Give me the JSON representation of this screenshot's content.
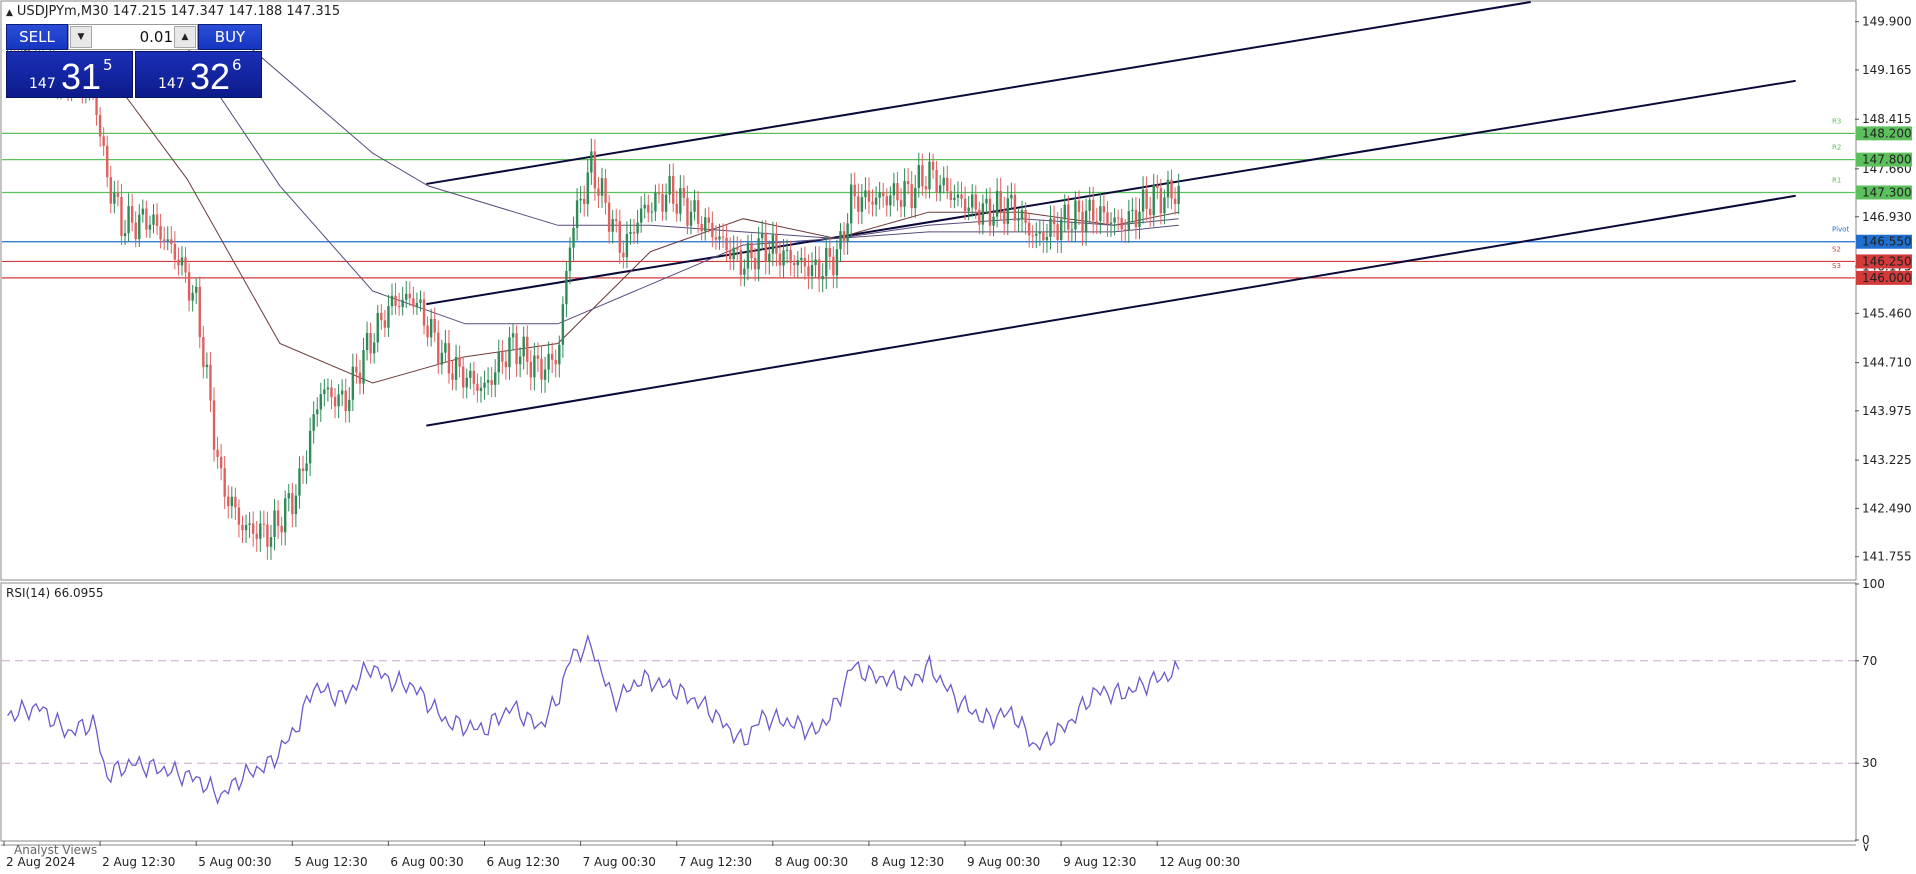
{
  "header": {
    "symbol_line": "USDJPYm,M30  147.215 147.347 147.188 147.315"
  },
  "trade_panel": {
    "sell_label": "SELL",
    "buy_label": "BUY",
    "quantity": "0.01",
    "sell_price_prefix": "147",
    "sell_price_main": "31",
    "sell_price_sup": "5",
    "buy_price_prefix": "147",
    "buy_price_main": "32",
    "buy_price_sup": "6"
  },
  "colors": {
    "bull": "#2e8b57",
    "bear": "#e06060",
    "resistance": "#5cc05c",
    "pivot": "#1e6fd0",
    "support": "#d33a3a",
    "channel": "#0a0a3a",
    "ma_fast": "#6b3a3a",
    "ma_slow": "#5a4a7a",
    "rsi_line": "#6a5acd"
  },
  "bottom": {
    "analyst_views": "Analyst Views"
  },
  "chart_data": [
    {
      "type": "candlestick",
      "title": "USDJPYm,M30",
      "ylim": [
        141.4,
        150.2
      ],
      "y_ticks": [
        "149.900",
        "149.165",
        "148.415",
        "147.660",
        "146.930",
        "146.175",
        "145.460",
        "144.710",
        "143.975",
        "143.225",
        "142.490",
        "141.755"
      ],
      "x_ticks": [
        "2 Aug 2024",
        "2 Aug 12:30",
        "5 Aug 00:30",
        "5 Aug 12:30",
        "6 Aug 00:30",
        "6 Aug 12:30",
        "7 Aug 00:30",
        "7 Aug 12:30",
        "8 Aug 00:30",
        "8 Aug 12:30",
        "9 Aug 00:30",
        "9 Aug 12:30",
        "12 Aug 00:30"
      ],
      "levels": [
        {
          "name": "R3",
          "value": 148.2,
          "label": "148.200",
          "kind": "resistance"
        },
        {
          "name": "R2",
          "value": 147.8,
          "label": "147.800",
          "kind": "resistance"
        },
        {
          "name": "R1",
          "value": 147.3,
          "label": "147.300",
          "kind": "resistance"
        },
        {
          "name": "Pivot",
          "value": 146.55,
          "label": "146.550",
          "kind": "pivot"
        },
        {
          "name": "S2",
          "value": 146.25,
          "label": "146.250",
          "kind": "support"
        },
        {
          "name": "S3",
          "value": 146.0,
          "label": "146.000",
          "kind": "support"
        }
      ],
      "trendlines": [
        {
          "name": "upper",
          "from": {
            "t": 0.229,
            "price": 147.43
          },
          "to": {
            "t": 0.825,
            "price": 150.2
          }
        },
        {
          "name": "middle",
          "from": {
            "t": 0.229,
            "price": 145.6
          },
          "to": {
            "t": 0.968,
            "price": 149.0
          }
        },
        {
          "name": "lower",
          "from": {
            "t": 0.229,
            "price": 143.75
          },
          "to": {
            "t": 0.968,
            "price": 147.25
          }
        }
      ],
      "close_anchors": [
        {
          "t": 0.0,
          "price": 149.4
        },
        {
          "t": 0.033,
          "price": 149.1
        },
        {
          "t": 0.05,
          "price": 148.8
        },
        {
          "t": 0.056,
          "price": 147.6
        },
        {
          "t": 0.065,
          "price": 146.8
        },
        {
          "t": 0.08,
          "price": 146.9
        },
        {
          "t": 0.095,
          "price": 146.3
        },
        {
          "t": 0.105,
          "price": 145.6
        },
        {
          "t": 0.118,
          "price": 142.9
        },
        {
          "t": 0.13,
          "price": 142.2
        },
        {
          "t": 0.145,
          "price": 142.1
        },
        {
          "t": 0.16,
          "price": 142.8
        },
        {
          "t": 0.172,
          "price": 144.3
        },
        {
          "t": 0.185,
          "price": 144.1
        },
        {
          "t": 0.198,
          "price": 145.0
        },
        {
          "t": 0.21,
          "price": 145.6
        },
        {
          "t": 0.222,
          "price": 145.7
        },
        {
          "t": 0.24,
          "price": 144.7
        },
        {
          "t": 0.26,
          "price": 144.3
        },
        {
          "t": 0.275,
          "price": 145.0
        },
        {
          "t": 0.29,
          "price": 144.6
        },
        {
          "t": 0.3,
          "price": 144.8
        },
        {
          "t": 0.307,
          "price": 146.7
        },
        {
          "t": 0.318,
          "price": 147.7
        },
        {
          "t": 0.335,
          "price": 146.4
        },
        {
          "t": 0.345,
          "price": 147.0
        },
        {
          "t": 0.36,
          "price": 147.3
        },
        {
          "t": 0.38,
          "price": 146.8
        },
        {
          "t": 0.4,
          "price": 146.2
        },
        {
          "t": 0.41,
          "price": 146.5
        },
        {
          "t": 0.425,
          "price": 146.3
        },
        {
          "t": 0.44,
          "price": 146.1
        },
        {
          "t": 0.452,
          "price": 146.4
        },
        {
          "t": 0.458,
          "price": 147.2
        },
        {
          "t": 0.47,
          "price": 147.2
        },
        {
          "t": 0.49,
          "price": 147.3
        },
        {
          "t": 0.5,
          "price": 147.6
        },
        {
          "t": 0.515,
          "price": 147.2
        },
        {
          "t": 0.53,
          "price": 147.0
        },
        {
          "t": 0.545,
          "price": 147.1
        },
        {
          "t": 0.558,
          "price": 146.6
        },
        {
          "t": 0.575,
          "price": 146.9
        },
        {
          "t": 0.59,
          "price": 147.0
        },
        {
          "t": 0.605,
          "price": 146.8
        },
        {
          "t": 0.62,
          "price": 147.2
        },
        {
          "t": 0.635,
          "price": 147.3
        }
      ],
      "moving_averages": [
        {
          "name": "MA fast",
          "points": [
            {
              "t": 0.05,
              "price": 149.4
            },
            {
              "t": 0.1,
              "price": 147.5
            },
            {
              "t": 0.15,
              "price": 145.0
            },
            {
              "t": 0.2,
              "price": 144.4
            },
            {
              "t": 0.25,
              "price": 144.8
            },
            {
              "t": 0.3,
              "price": 145.0
            },
            {
              "t": 0.35,
              "price": 146.4
            },
            {
              "t": 0.4,
              "price": 146.9
            },
            {
              "t": 0.45,
              "price": 146.6
            },
            {
              "t": 0.5,
              "price": 147.0
            },
            {
              "t": 0.55,
              "price": 147.0
            },
            {
              "t": 0.6,
              "price": 146.8
            },
            {
              "t": 0.635,
              "price": 147.0
            }
          ]
        },
        {
          "name": "MA slow",
          "points": [
            {
              "t": 0.1,
              "price": 149.5
            },
            {
              "t": 0.15,
              "price": 147.4
            },
            {
              "t": 0.2,
              "price": 145.8
            },
            {
              "t": 0.25,
              "price": 145.3
            },
            {
              "t": 0.3,
              "price": 145.3
            },
            {
              "t": 0.35,
              "price": 145.9
            },
            {
              "t": 0.4,
              "price": 146.5
            },
            {
              "t": 0.45,
              "price": 146.6
            },
            {
              "t": 0.5,
              "price": 146.8
            },
            {
              "t": 0.55,
              "price": 146.9
            },
            {
              "t": 0.6,
              "price": 146.8
            },
            {
              "t": 0.635,
              "price": 146.9
            }
          ]
        },
        {
          "name": "MA long",
          "points": [
            {
              "t": 0.13,
              "price": 149.6
            },
            {
              "t": 0.2,
              "price": 147.9
            },
            {
              "t": 0.23,
              "price": 147.4
            },
            {
              "t": 0.3,
              "price": 146.8
            },
            {
              "t": 0.35,
              "price": 146.8
            },
            {
              "t": 0.4,
              "price": 146.7
            },
            {
              "t": 0.45,
              "price": 146.6
            },
            {
              "t": 0.5,
              "price": 146.7
            },
            {
              "t": 0.55,
              "price": 146.7
            },
            {
              "t": 0.6,
              "price": 146.7
            },
            {
              "t": 0.635,
              "price": 146.8
            }
          ]
        }
      ]
    },
    {
      "type": "line",
      "title": "RSI(14) 66.0955",
      "ylim": [
        0,
        100
      ],
      "y_ticks": [
        "100",
        "70",
        "30",
        "0"
      ],
      "levels": [
        70,
        30
      ],
      "anchors": [
        {
          "t": 0.0,
          "price": 48
        },
        {
          "t": 0.02,
          "price": 52
        },
        {
          "t": 0.035,
          "price": 42
        },
        {
          "t": 0.05,
          "price": 46
        },
        {
          "t": 0.056,
          "price": 25
        },
        {
          "t": 0.07,
          "price": 30
        },
        {
          "t": 0.09,
          "price": 27
        },
        {
          "t": 0.105,
          "price": 24
        },
        {
          "t": 0.118,
          "price": 17
        },
        {
          "t": 0.13,
          "price": 25
        },
        {
          "t": 0.145,
          "price": 30
        },
        {
          "t": 0.16,
          "price": 45
        },
        {
          "t": 0.168,
          "price": 60
        },
        {
          "t": 0.185,
          "price": 55
        },
        {
          "t": 0.198,
          "price": 68
        },
        {
          "t": 0.21,
          "price": 62
        },
        {
          "t": 0.222,
          "price": 60
        },
        {
          "t": 0.24,
          "price": 46
        },
        {
          "t": 0.26,
          "price": 43
        },
        {
          "t": 0.275,
          "price": 52
        },
        {
          "t": 0.29,
          "price": 44
        },
        {
          "t": 0.3,
          "price": 55
        },
        {
          "t": 0.307,
          "price": 72
        },
        {
          "t": 0.318,
          "price": 76
        },
        {
          "t": 0.33,
          "price": 54
        },
        {
          "t": 0.345,
          "price": 63
        },
        {
          "t": 0.36,
          "price": 60
        },
        {
          "t": 0.38,
          "price": 52
        },
        {
          "t": 0.4,
          "price": 38
        },
        {
          "t": 0.41,
          "price": 48
        },
        {
          "t": 0.425,
          "price": 46
        },
        {
          "t": 0.44,
          "price": 42
        },
        {
          "t": 0.452,
          "price": 55
        },
        {
          "t": 0.458,
          "price": 68
        },
        {
          "t": 0.47,
          "price": 64
        },
        {
          "t": 0.49,
          "price": 61
        },
        {
          "t": 0.5,
          "price": 68
        },
        {
          "t": 0.515,
          "price": 55
        },
        {
          "t": 0.53,
          "price": 47
        },
        {
          "t": 0.545,
          "price": 50
        },
        {
          "t": 0.558,
          "price": 36
        },
        {
          "t": 0.575,
          "price": 45
        },
        {
          "t": 0.59,
          "price": 58
        },
        {
          "t": 0.605,
          "price": 57
        },
        {
          "t": 0.62,
          "price": 62
        },
        {
          "t": 0.635,
          "price": 66
        }
      ]
    }
  ]
}
